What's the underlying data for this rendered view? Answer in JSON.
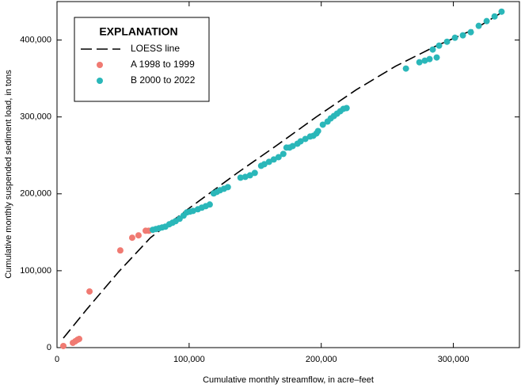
{
  "chart_data": {
    "type": "scatter",
    "x_label": "Cumulative monthly streamflow, in acre–feet",
    "y_label": "Cumulative monthly suspended sediment load, in tons",
    "xlim": [
      0,
      350000
    ],
    "ylim": [
      0,
      450000
    ],
    "xticks": [
      0,
      {
        "value": 100000,
        "label": "100,000"
      },
      {
        "value": 200000,
        "label": "200,000"
      },
      {
        "value": 300000,
        "label": "300,000"
      }
    ],
    "yticks": [
      0,
      {
        "value": 100000,
        "label": "100,000"
      },
      {
        "value": 200000,
        "label": "200,000"
      },
      {
        "value": 300000,
        "label": "300,000"
      },
      {
        "value": 400000,
        "label": "400,000"
      }
    ],
    "grid": false,
    "legend_title": "EXPLANATION",
    "legend": "upper left",
    "series": [
      {
        "name": "LOESS line",
        "color": "#000000",
        "marker": "dashed-line",
        "x": [
          4800,
          22800,
          46700,
          70700,
          100600,
          136500,
          166500,
          196400,
          226300,
          256300,
          286200,
          316200,
          337700
        ],
        "values": [
          12300,
          50400,
          98700,
          142900,
          182000,
          227200,
          263200,
          300200,
          335100,
          366000,
          391700,
          414300,
          436900
        ]
      },
      {
        "name": "A 1998 to 1999",
        "color": "#f07a72",
        "marker": "circle",
        "x": [
          4800,
          12000,
          13800,
          15600,
          16800,
          24600,
          47900,
          56900,
          61700,
          67100,
          69500
        ],
        "values": [
          2100,
          6200,
          8200,
          10300,
          11300,
          73000,
          126400,
          142900,
          146000,
          152000,
          152000
        ]
      },
      {
        "name": "B 2000 to 2022",
        "color": "#2ab7b9",
        "marker": "circle",
        "x": [
          72500,
          74900,
          77200,
          79600,
          82000,
          85000,
          87400,
          89800,
          92800,
          95800,
          98200,
          100600,
          103000,
          106600,
          109600,
          112600,
          115600,
          118600,
          121000,
          123400,
          126400,
          129300,
          138900,
          142500,
          146100,
          149700,
          154500,
          156900,
          160500,
          164100,
          167700,
          171300,
          173700,
          176000,
          178400,
          182000,
          184400,
          188000,
          191600,
          194000,
          196400,
          197600,
          201200,
          204800,
          207200,
          209600,
          212000,
          214400,
          216800,
          219200,
          264100,
          274300,
          278400,
          282000,
          287400,
          284400,
          289200,
          295200,
          301200,
          307200,
          313200,
          319200,
          325200,
          331200,
          336500
        ],
        "values": [
          153200,
          154200,
          155200,
          156300,
          157300,
          160400,
          162400,
          164500,
          167600,
          171700,
          175800,
          176800,
          177800,
          179900,
          182000,
          184000,
          186100,
          200500,
          202500,
          204600,
          206600,
          208700,
          221000,
          222000,
          224100,
          227200,
          236400,
          238500,
          241600,
          244700,
          247700,
          251900,
          260100,
          260100,
          262100,
          265200,
          268300,
          271400,
          274500,
          275500,
          278600,
          281700,
          289900,
          294000,
          298100,
          301200,
          304300,
          307400,
          310500,
          311500,
          362900,
          371100,
          373200,
          375200,
          377300,
          387600,
          392700,
          397800,
          403000,
          406100,
          410200,
          418400,
          424600,
          430700,
          436900
        ]
      }
    ]
  }
}
